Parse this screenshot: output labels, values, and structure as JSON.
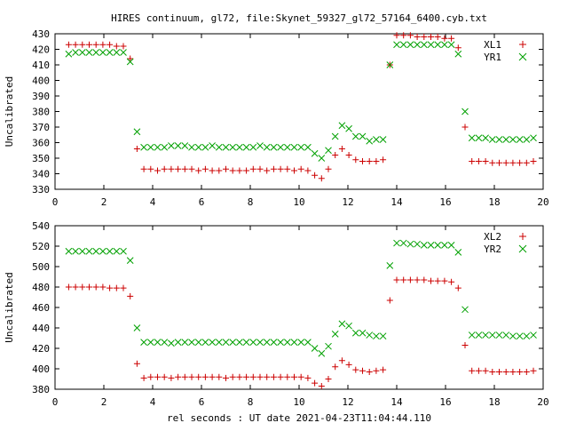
{
  "title": "HIRES continuum, gl72, file:Skynet_59327_gl72_57164_6400.cyb.txt",
  "xlabel": "rel seconds : UT date 2021-04-23T11:04:44.110",
  "colors": {
    "series1": "#cc0000",
    "series2": "#00a000"
  },
  "chart_data": [
    {
      "type": "scatter",
      "ylabel": "Uncalibrated",
      "xlim": [
        0,
        20
      ],
      "ylim": [
        330,
        430
      ],
      "xticks": [
        0,
        2,
        4,
        6,
        8,
        10,
        12,
        14,
        16,
        18,
        20
      ],
      "yticks": [
        330,
        340,
        350,
        360,
        370,
        380,
        390,
        400,
        410,
        420,
        430
      ],
      "grid": false,
      "legend": "top-right",
      "series": [
        {
          "name": "XL1",
          "marker": "plus",
          "x": [
            0.56,
            0.84,
            1.12,
            1.4,
            1.68,
            1.96,
            2.24,
            2.52,
            2.8,
            3.08,
            3.36,
            3.64,
            3.92,
            4.2,
            4.48,
            4.76,
            5.04,
            5.32,
            5.6,
            5.88,
            6.16,
            6.44,
            6.72,
            7.0,
            7.28,
            7.56,
            7.84,
            8.12,
            8.4,
            8.68,
            8.96,
            9.24,
            9.52,
            9.8,
            10.08,
            10.36,
            10.64,
            10.92,
            11.2,
            11.48,
            11.76,
            12.04,
            12.32,
            12.6,
            12.88,
            13.16,
            13.44,
            13.72,
            14.0,
            14.28,
            14.56,
            14.84,
            15.12,
            15.4,
            15.68,
            15.96,
            16.24,
            16.52,
            16.8,
            17.08,
            17.36,
            17.64,
            17.92,
            18.2,
            18.48,
            18.76,
            19.04,
            19.32,
            19.6
          ],
          "y": [
            423,
            423,
            423,
            423,
            423,
            423,
            423,
            422,
            422,
            414,
            356,
            343,
            343,
            342,
            343,
            343,
            343,
            343,
            343,
            342,
            343,
            342,
            342,
            343,
            342,
            342,
            342,
            343,
            343,
            342,
            343,
            343,
            343,
            342,
            343,
            342,
            339,
            337,
            343,
            352,
            356,
            352,
            349,
            348,
            348,
            348,
            349,
            410,
            429,
            429,
            429,
            428,
            428,
            428,
            428,
            427,
            427,
            421,
            370,
            348,
            348,
            348,
            347,
            347,
            347,
            347,
            347,
            347,
            348
          ]
        },
        {
          "name": "YR1",
          "marker": "cross",
          "x": [
            0.56,
            0.84,
            1.12,
            1.4,
            1.68,
            1.96,
            2.24,
            2.52,
            2.8,
            3.08,
            3.36,
            3.64,
            3.92,
            4.2,
            4.48,
            4.76,
            5.04,
            5.32,
            5.6,
            5.88,
            6.16,
            6.44,
            6.72,
            7.0,
            7.28,
            7.56,
            7.84,
            8.12,
            8.4,
            8.68,
            8.96,
            9.24,
            9.52,
            9.8,
            10.08,
            10.36,
            10.64,
            10.92,
            11.2,
            11.48,
            11.76,
            12.04,
            12.32,
            12.6,
            12.88,
            13.16,
            13.44,
            13.72,
            14.0,
            14.28,
            14.56,
            14.84,
            15.12,
            15.4,
            15.68,
            15.96,
            16.24,
            16.52,
            16.8,
            17.08,
            17.36,
            17.64,
            17.92,
            18.2,
            18.48,
            18.76,
            19.04,
            19.32,
            19.6
          ],
          "y": [
            417,
            418,
            418,
            418,
            418,
            418,
            418,
            418,
            418,
            412,
            367,
            357,
            357,
            357,
            357,
            358,
            358,
            358,
            357,
            357,
            357,
            358,
            357,
            357,
            357,
            357,
            357,
            357,
            358,
            357,
            357,
            357,
            357,
            357,
            357,
            357,
            353,
            350,
            355,
            364,
            371,
            369,
            364,
            364,
            361,
            362,
            362,
            410,
            423,
            423,
            423,
            423,
            423,
            423,
            423,
            423,
            423,
            417,
            380,
            363,
            363,
            363,
            362,
            362,
            362,
            362,
            362,
            362,
            363
          ]
        }
      ]
    },
    {
      "type": "scatter",
      "ylabel": "Uncalibrated",
      "xlim": [
        0,
        20
      ],
      "ylim": [
        380,
        540
      ],
      "xticks": [
        0,
        2,
        4,
        6,
        8,
        10,
        12,
        14,
        16,
        18,
        20
      ],
      "yticks": [
        380,
        400,
        420,
        440,
        460,
        480,
        500,
        520,
        540
      ],
      "grid": false,
      "legend": "top-right",
      "series": [
        {
          "name": "XL2",
          "marker": "plus",
          "x": [
            0.56,
            0.84,
            1.12,
            1.4,
            1.68,
            1.96,
            2.24,
            2.52,
            2.8,
            3.08,
            3.36,
            3.64,
            3.92,
            4.2,
            4.48,
            4.76,
            5.04,
            5.32,
            5.6,
            5.88,
            6.16,
            6.44,
            6.72,
            7.0,
            7.28,
            7.56,
            7.84,
            8.12,
            8.4,
            8.68,
            8.96,
            9.24,
            9.52,
            9.8,
            10.08,
            10.36,
            10.64,
            10.92,
            11.2,
            11.48,
            11.76,
            12.04,
            12.32,
            12.6,
            12.88,
            13.16,
            13.44,
            13.72,
            14.0,
            14.28,
            14.56,
            14.84,
            15.12,
            15.4,
            15.68,
            15.96,
            16.24,
            16.52,
            16.8,
            17.08,
            17.36,
            17.64,
            17.92,
            18.2,
            18.48,
            18.76,
            19.04,
            19.32,
            19.6
          ],
          "y": [
            480,
            480,
            480,
            480,
            480,
            480,
            479,
            479,
            479,
            471,
            405,
            391,
            392,
            392,
            392,
            391,
            392,
            392,
            392,
            392,
            392,
            392,
            392,
            391,
            392,
            392,
            392,
            392,
            392,
            392,
            392,
            392,
            392,
            392,
            392,
            391,
            386,
            383,
            390,
            402,
            408,
            404,
            399,
            398,
            397,
            398,
            399,
            467,
            487,
            487,
            487,
            487,
            487,
            486,
            486,
            486,
            485,
            479,
            423,
            398,
            398,
            398,
            397,
            397,
            397,
            397,
            397,
            397,
            398
          ]
        },
        {
          "name": "YR2",
          "marker": "cross",
          "x": [
            0.56,
            0.84,
            1.12,
            1.4,
            1.68,
            1.96,
            2.24,
            2.52,
            2.8,
            3.08,
            3.36,
            3.64,
            3.92,
            4.2,
            4.48,
            4.76,
            5.04,
            5.32,
            5.6,
            5.88,
            6.16,
            6.44,
            6.72,
            7.0,
            7.28,
            7.56,
            7.84,
            8.12,
            8.4,
            8.68,
            8.96,
            9.24,
            9.52,
            9.8,
            10.08,
            10.36,
            10.64,
            10.92,
            11.2,
            11.48,
            11.76,
            12.04,
            12.32,
            12.6,
            12.88,
            13.16,
            13.44,
            13.72,
            14.0,
            14.28,
            14.56,
            14.84,
            15.12,
            15.4,
            15.68,
            15.96,
            16.24,
            16.52,
            16.8,
            17.08,
            17.36,
            17.64,
            17.92,
            18.2,
            18.48,
            18.76,
            19.04,
            19.32,
            19.6
          ],
          "y": [
            515,
            515,
            515,
            515,
            515,
            515,
            515,
            515,
            515,
            506,
            440,
            426,
            426,
            426,
            426,
            425,
            426,
            426,
            426,
            426,
            426,
            426,
            426,
            426,
            426,
            426,
            426,
            426,
            426,
            426,
            426,
            426,
            426,
            426,
            426,
            426,
            420,
            415,
            422,
            434,
            444,
            442,
            435,
            435,
            433,
            432,
            432,
            501,
            523,
            523,
            522,
            522,
            521,
            521,
            521,
            521,
            521,
            514,
            458,
            433,
            433,
            433,
            433,
            433,
            433,
            432,
            432,
            432,
            433
          ]
        }
      ]
    }
  ]
}
